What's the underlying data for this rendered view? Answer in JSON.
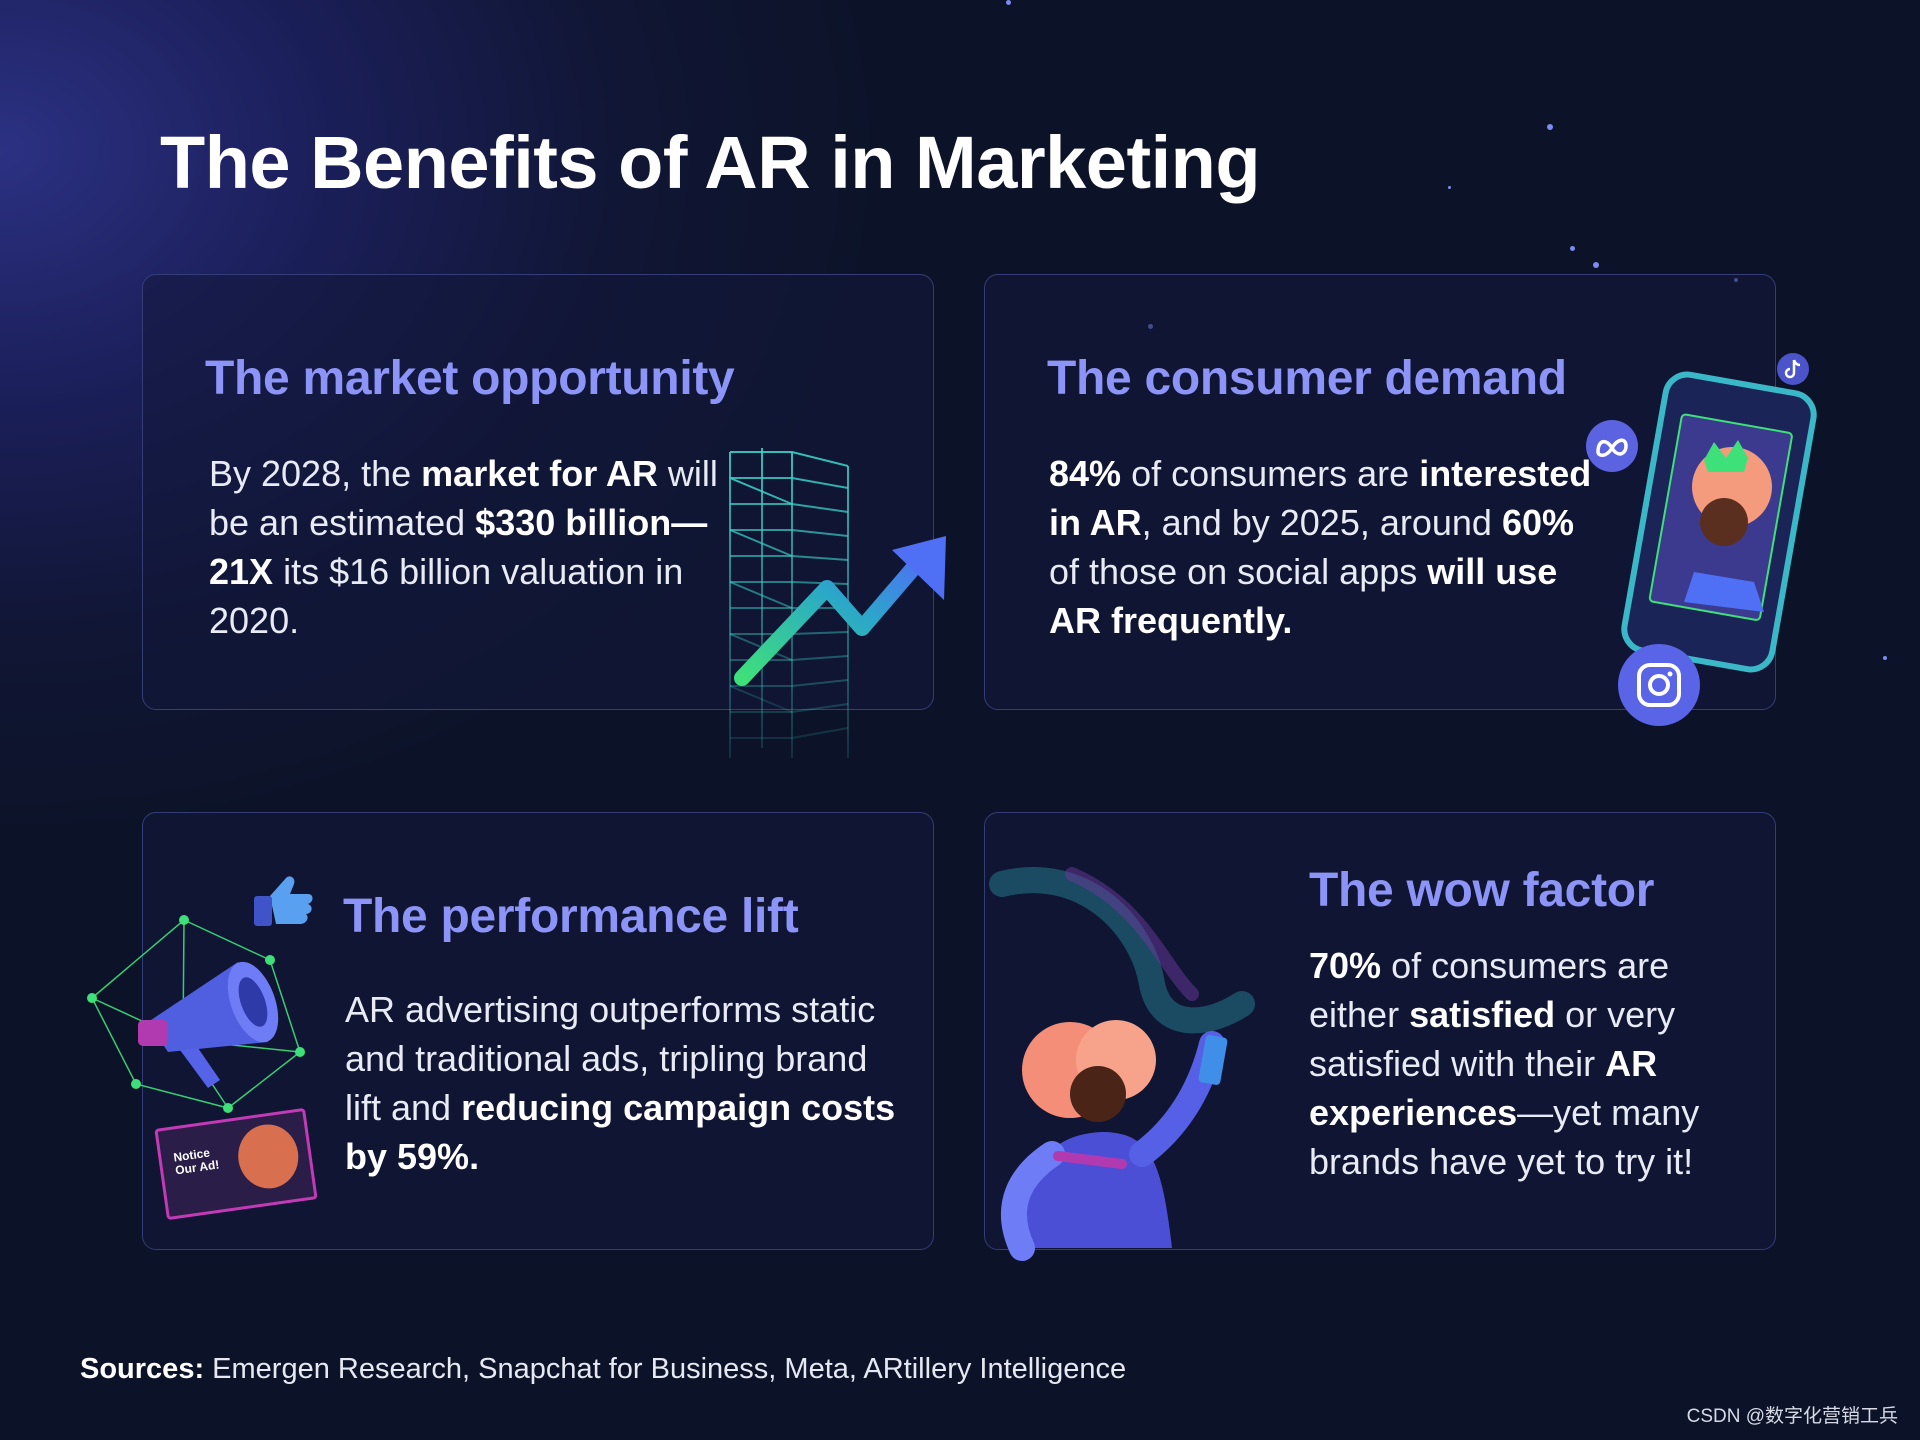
{
  "title": "The Benefits of AR in Marketing",
  "cards": {
    "market": {
      "heading": "The market opportunity",
      "body": [
        {
          "t": "By 2028, the "
        },
        {
          "t": "market for AR",
          "b": true
        },
        {
          "t": " will be an estimated "
        },
        {
          "t": "$330 billion—21X",
          "b": true
        },
        {
          "t": " its $16 billion valuation in 2020."
        }
      ]
    },
    "consumer": {
      "heading": "The consumer demand",
      "body": [
        {
          "t": "84%",
          "b": true
        },
        {
          "t": " of consumers are "
        },
        {
          "t": "interested in AR",
          "b": true
        },
        {
          "t": ", and by 2025, around "
        },
        {
          "t": "60%",
          "b": true
        },
        {
          "t": " of those on social apps "
        },
        {
          "t": "will use AR frequently.",
          "b": true
        }
      ]
    },
    "performance": {
      "heading": "The performance lift",
      "body": [
        {
          "t": "AR advertising outperforms static and traditional ads, tripling brand lift and "
        },
        {
          "t": "reducing campaign costs by 59%.",
          "b": true
        }
      ]
    },
    "wow": {
      "heading": "The wow factor",
      "body": [
        {
          "t": "70%",
          "b": true
        },
        {
          "t": " of consumers are either "
        },
        {
          "t": "satisfied",
          "b": true
        },
        {
          "t": " or very satisfied with their "
        },
        {
          "t": "AR experiences",
          "b": true
        },
        {
          "t": "—yet many brands have yet to try it!"
        }
      ]
    }
  },
  "illustration": {
    "ad_sign_text": "Notice Our Ad!",
    "icons": [
      "chart-tower-icon",
      "trend-arrow-icon",
      "phone-icon",
      "meta-icon",
      "instagram-icon",
      "tiktok-icon",
      "megaphone-icon",
      "thumbs-up-icon",
      "character-illustration"
    ]
  },
  "sources": {
    "label": "Sources:",
    "text": " Emergen Research, Snapchat for Business, Meta, ARtillery Intelligence"
  },
  "watermark": "CSDN @数字化营销工兵",
  "colors": {
    "heading": "#8c95f7",
    "accent_green": "#3ee07a",
    "background": "#0c1328"
  }
}
